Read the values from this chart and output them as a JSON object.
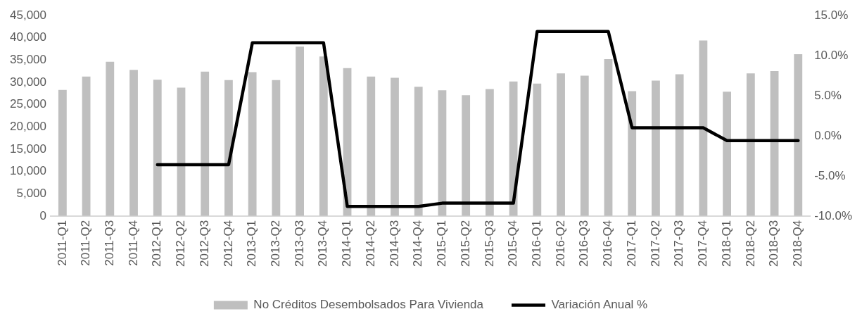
{
  "chart_data": {
    "type": "bar",
    "categories": [
      "2011-Q1",
      "2011-Q2",
      "2011-Q3",
      "2011-Q4",
      "2012-Q1",
      "2012-Q2",
      "2012-Q3",
      "2012-Q4",
      "2013-Q1",
      "2013-Q2",
      "2013-Q3",
      "2013-Q4",
      "2014-Q1",
      "2014-Q2",
      "2014-Q3",
      "2014-Q4",
      "2015-Q1",
      "2015-Q2",
      "2015-Q3",
      "2015-Q4",
      "2016-Q1",
      "2016-Q2",
      "2016-Q3",
      "2016-Q4",
      "2017-Q1",
      "2017-Q2",
      "2017-Q3",
      "2017-Q4",
      "2018-Q1",
      "2018-Q2",
      "2018-Q3",
      "2018-Q4"
    ],
    "series": [
      {
        "name": "No Créditos Desembolsados Para Vivienda",
        "color": "#bfbfbf",
        "values": [
          28300,
          31300,
          34600,
          32800,
          30600,
          28800,
          32400,
          30500,
          32300,
          30500,
          38000,
          35800,
          33200,
          31300,
          31000,
          29000,
          28200,
          27100,
          28500,
          30200,
          29700,
          32000,
          31500,
          35200,
          28000,
          30400,
          31800,
          39400,
          27900,
          32000,
          32500,
          36300
        ]
      },
      {
        "name": "Variación Anual %",
        "type": "line",
        "axis": "y2",
        "color": "#000000",
        "values": [
          null,
          null,
          null,
          null,
          -3.6,
          -3.6,
          -3.6,
          -3.6,
          11.6,
          11.6,
          11.6,
          11.6,
          -8.8,
          -8.8,
          -8.8,
          -8.8,
          -8.4,
          -8.4,
          -8.4,
          -8.4,
          13.0,
          13.0,
          13.0,
          13.0,
          1.0,
          1.0,
          1.0,
          1.0,
          -0.6,
          -0.6,
          -0.6,
          -0.6
        ]
      }
    ],
    "ylim": [
      0,
      45000
    ],
    "yticks": [
      {
        "value": 0,
        "label": "0"
      },
      {
        "value": 5000,
        "label": "5,000"
      },
      {
        "value": 10000,
        "label": "10,000"
      },
      {
        "value": 15000,
        "label": "15,000"
      },
      {
        "value": 20000,
        "label": "20,000"
      },
      {
        "value": 25000,
        "label": "25,000"
      },
      {
        "value": 30000,
        "label": "30,000"
      },
      {
        "value": 35000,
        "label": "35,000"
      },
      {
        "value": 40000,
        "label": "40,000"
      },
      {
        "value": 45000,
        "label": "45,000"
      }
    ],
    "y2lim": [
      -10,
      15
    ],
    "y2ticks": [
      {
        "value": -10,
        "label": "-10.0%"
      },
      {
        "value": -5,
        "label": "-5.0%"
      },
      {
        "value": 0,
        "label": "0.0%"
      },
      {
        "value": 5,
        "label": "5.0%"
      },
      {
        "value": 10,
        "label": "10.0%"
      },
      {
        "value": 15,
        "label": "15.0%"
      }
    ],
    "grid": false,
    "legend": "bottom",
    "marker": "none",
    "line_style": "solid"
  }
}
